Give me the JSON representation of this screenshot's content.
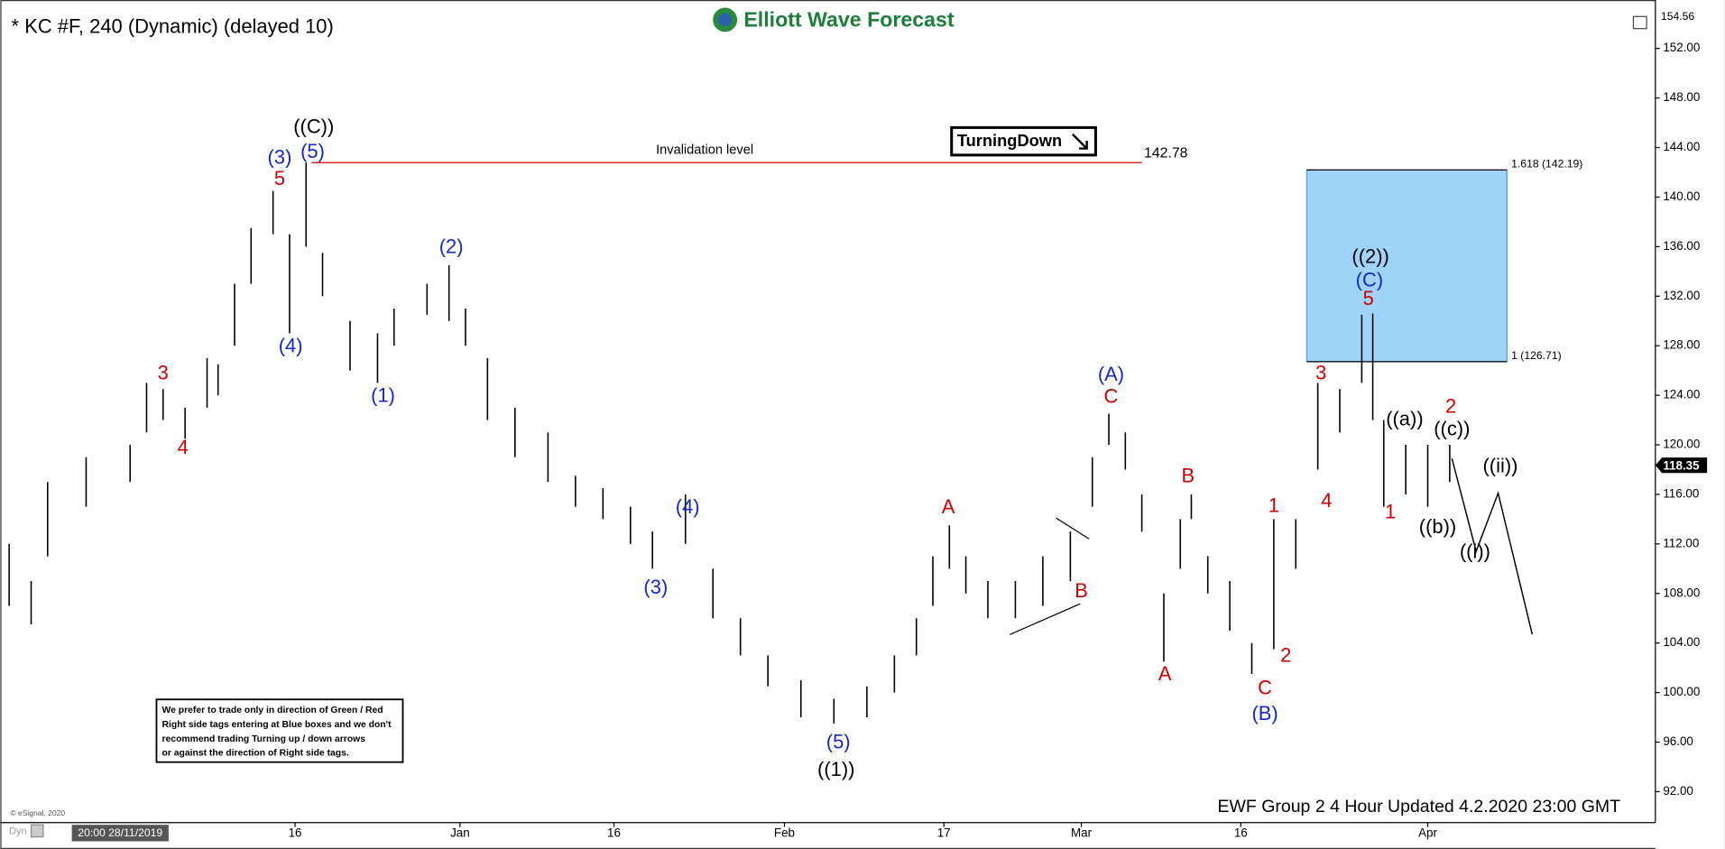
{
  "chart_data": {
    "type": "ohlc",
    "title": "* KC #F, 240 (Dynamic) (delayed 10)",
    "logo": "Elliott Wave Forecast",
    "badge": "TurningDown",
    "disclaimer": [
      "We prefer to trade only in direction of Green / Red",
      "Right side tags entering at Blue boxes and we don't",
      "recommend trading Turning up / down arrows",
      "or against the direction of Right side tags."
    ],
    "footer": "EWF Group 2 4 Hour Updated 4.2.2020 23:00 GMT",
    "copyright": "© eSignal, 2020",
    "mode": "Dyn",
    "start_date": "20:00 28/11/2019",
    "xlim": [
      0,
      299
    ],
    "xticks": [
      {
        "value": 52,
        "label": "16"
      },
      {
        "value": 82,
        "label": "Jan"
      },
      {
        "value": 110,
        "label": "16"
      },
      {
        "value": 141,
        "label": "Feb"
      },
      {
        "value": 170,
        "label": "17"
      },
      {
        "value": 195,
        "label": "Mar"
      },
      {
        "value": 224,
        "label": "16"
      },
      {
        "value": 258,
        "label": "Apr"
      }
    ],
    "ylim": [
      89.5,
      155.2
    ],
    "yticks": [
      {
        "value": 92,
        "label": "92.00"
      },
      {
        "value": 96,
        "label": "96.00"
      },
      {
        "value": 100,
        "label": "100.00"
      },
      {
        "value": 104,
        "label": "104.00"
      },
      {
        "value": 108,
        "label": "108.00"
      },
      {
        "value": 112,
        "label": "112.00"
      },
      {
        "value": 116,
        "label": "116.00"
      },
      {
        "value": 120,
        "label": "120.00"
      },
      {
        "value": 124,
        "label": "124.00"
      },
      {
        "value": 128,
        "label": "128.00"
      },
      {
        "value": 132,
        "label": "132.00"
      },
      {
        "value": 136,
        "label": "136.00"
      },
      {
        "value": 140,
        "label": "140.00"
      },
      {
        "value": 144,
        "label": "144.00"
      },
      {
        "value": 148,
        "label": "148.00"
      },
      {
        "value": 152,
        "label": "152.00"
      }
    ],
    "axis_top_label": 154.56,
    "last_price": 118.35,
    "bar_color": "#000000",
    "x": [
      0,
      4,
      7,
      14,
      22,
      25,
      28,
      32,
      36,
      38,
      41,
      44,
      48,
      51,
      54,
      57,
      62,
      67,
      70,
      76,
      80,
      83,
      87,
      92,
      98,
      103,
      108,
      113,
      117,
      123,
      128,
      133,
      138,
      144,
      150,
      156,
      161,
      165,
      168,
      171,
      174,
      178,
      183,
      188,
      193,
      197,
      200,
      203,
      206,
      210,
      213,
      215,
      218,
      222,
      226,
      230,
      234,
      238,
      242,
      246,
      248,
      250,
      254,
      258,
      262
    ],
    "high": [
      112,
      109,
      117,
      119,
      120,
      125,
      124.5,
      123,
      127,
      126.5,
      133,
      137.5,
      140.5,
      137,
      142.78,
      135.5,
      130,
      129,
      131,
      133,
      134.5,
      131,
      127,
      123,
      121,
      117.5,
      116.5,
      115,
      113,
      116,
      110,
      106,
      103,
      101,
      99.5,
      100.5,
      103,
      106,
      111,
      113.5,
      111,
      109,
      109,
      111,
      113,
      119,
      122.5,
      121,
      116,
      108,
      114,
      116,
      111,
      109,
      104,
      114,
      114,
      125,
      124.5,
      130.5,
      130.6,
      122,
      120,
      120,
      120
    ],
    "low": [
      107,
      105.5,
      111,
      115,
      117,
      121,
      122,
      120.5,
      123,
      124,
      128,
      133,
      137,
      129,
      136,
      132,
      126,
      125,
      128,
      130.5,
      130,
      128,
      122,
      119,
      117,
      115,
      114,
      112,
      110,
      112,
      106,
      103,
      100.5,
      98,
      97.5,
      98,
      100,
      103,
      107,
      110,
      108,
      106,
      106,
      107,
      109,
      115,
      120,
      118,
      113,
      102.5,
      110,
      114,
      108,
      105,
      101.5,
      103.5,
      110,
      118,
      121,
      125,
      122,
      115,
      116,
      115,
      117
    ],
    "invalidation": {
      "label": "Invalidation level",
      "value": 142.78,
      "x_start": 55,
      "x_end": 206,
      "color": "#d00000"
    },
    "target_box": {
      "top": 142.19,
      "bottom": 126.71,
      "x_start": 236,
      "x_end": 272.4,
      "top_label": "1.618 (142.19)",
      "bottom_label": "1 (126.71)",
      "color": "#9fd3f7"
    },
    "annotations": [
      {
        "text": "((C))",
        "x": 55.4,
        "y": 145.6,
        "color": "#000000"
      },
      {
        "text": "(3)",
        "x": 49.2,
        "y": 143.1,
        "color": "#1428c8"
      },
      {
        "text": "(5)",
        "x": 55.2,
        "y": 143.6,
        "color": "#1428c8"
      },
      {
        "text": "5",
        "x": 49.2,
        "y": 141.4,
        "color": "#d00000"
      },
      {
        "text": "3",
        "x": 28,
        "y": 125.7,
        "color": "#d00000"
      },
      {
        "text": "4",
        "x": 31.6,
        "y": 119.7,
        "color": "#d00000"
      },
      {
        "text": "(4)",
        "x": 51.2,
        "y": 127.9,
        "color": "#1428c8"
      },
      {
        "text": "(1)",
        "x": 68,
        "y": 123.9,
        "color": "#1428c8"
      },
      {
        "text": "(2)",
        "x": 80.4,
        "y": 135.9,
        "color": "#1428c8"
      },
      {
        "text": "(4)",
        "x": 123.4,
        "y": 114.9,
        "color": "#1428c8"
      },
      {
        "text": "(3)",
        "x": 117.6,
        "y": 108.4,
        "color": "#1428c8"
      },
      {
        "text": "(5)",
        "x": 150.8,
        "y": 95.9,
        "color": "#1428c8"
      },
      {
        "text": "((1))",
        "x": 150.4,
        "y": 93.7,
        "color": "#000000"
      },
      {
        "text": "A",
        "x": 170.8,
        "y": 114.9,
        "color": "#d00000"
      },
      {
        "text": "B",
        "x": 195,
        "y": 108.1,
        "color": "#d00000"
      },
      {
        "text": "(A)",
        "x": 200.4,
        "y": 125.6,
        "color": "#1428c8"
      },
      {
        "text": "C",
        "x": 200.4,
        "y": 123.8,
        "color": "#d00000"
      },
      {
        "text": "B",
        "x": 214.4,
        "y": 117.4,
        "color": "#d00000"
      },
      {
        "text": "A",
        "x": 210.2,
        "y": 101.4,
        "color": "#d00000"
      },
      {
        "text": "C",
        "x": 228.4,
        "y": 100.3,
        "color": "#d00000"
      },
      {
        "text": "(B)",
        "x": 228.4,
        "y": 98.2,
        "color": "#1428c8"
      },
      {
        "text": "1",
        "x": 230,
        "y": 115,
        "color": "#d00000"
      },
      {
        "text": "2",
        "x": 232.2,
        "y": 102.9,
        "color": "#d00000"
      },
      {
        "text": "3",
        "x": 238.6,
        "y": 125.7,
        "color": "#d00000"
      },
      {
        "text": "4",
        "x": 239.6,
        "y": 115.4,
        "color": "#d00000"
      },
      {
        "text": "((2))",
        "x": 247.6,
        "y": 135.1,
        "color": "#000000"
      },
      {
        "text": "(C)",
        "x": 247.4,
        "y": 133.2,
        "color": "#1428c8"
      },
      {
        "text": "5",
        "x": 247.2,
        "y": 131.7,
        "color": "#d00000"
      },
      {
        "text": "((a))",
        "x": 253.8,
        "y": 122,
        "color": "#000000"
      },
      {
        "text": "1",
        "x": 251.2,
        "y": 114.5,
        "color": "#d00000"
      },
      {
        "text": "2",
        "x": 262.2,
        "y": 123,
        "color": "#d00000"
      },
      {
        "text": "((c))",
        "x": 262.4,
        "y": 121.2,
        "color": "#000000"
      },
      {
        "text": "((b))",
        "x": 259.8,
        "y": 113.3,
        "color": "#000000"
      },
      {
        "text": "((i))",
        "x": 266.6,
        "y": 111.3,
        "color": "#000000"
      },
      {
        "text": "((ii))",
        "x": 271.2,
        "y": 118.2,
        "color": "#000000"
      }
    ],
    "projection": {
      "x": [
        262.4,
        266.8,
        270.8,
        277
      ],
      "y": [
        118.9,
        111.4,
        116.1,
        104.7
      ]
    }
  }
}
